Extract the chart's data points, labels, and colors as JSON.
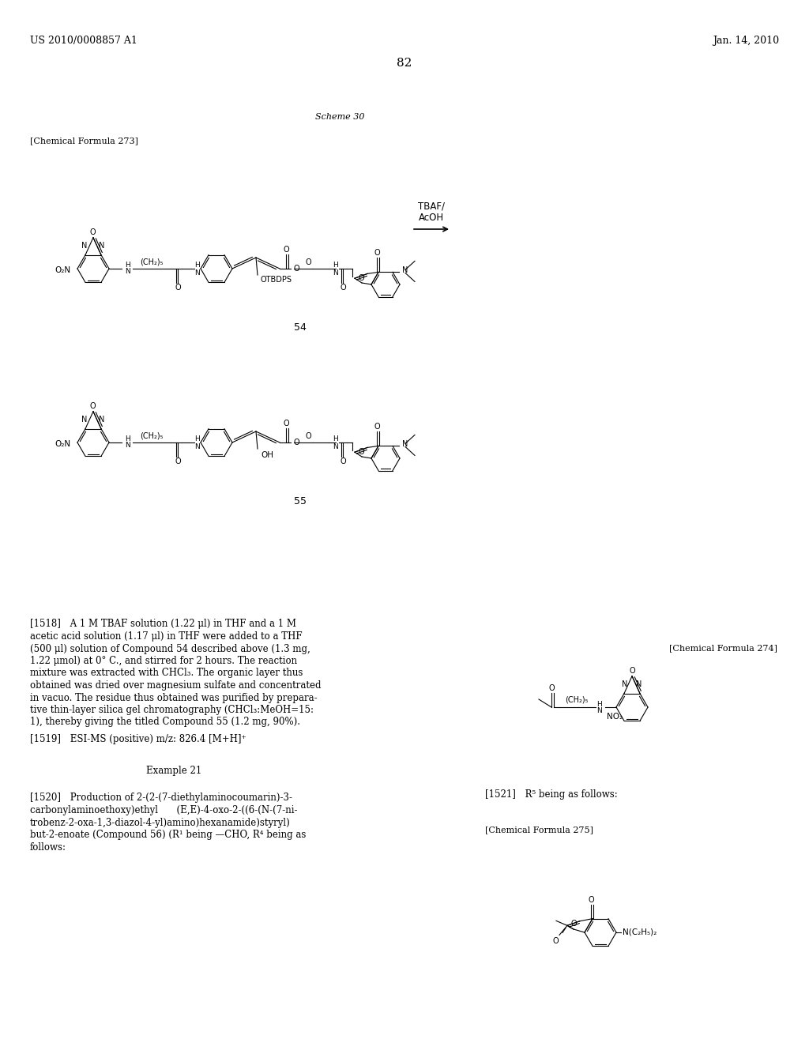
{
  "bg_color": "#ffffff",
  "header_left": "US 2010/0008857 A1",
  "header_right": "Jan. 14, 2010",
  "page_number": "82",
  "scheme_label": "Scheme 30",
  "chem_formula_273": "[Chemical Formula 273]",
  "chem_formula_274": "[Chemical Formula 274]",
  "chem_formula_275": "[Chemical Formula 275]",
  "compound_54": "54",
  "compound_55": "55",
  "tbaf_label": "TBAF/\nAcOH",
  "para_1518_lines": [
    "[1518] A 1 M TBAF solution (1.22 μl) in THF and a 1 M",
    "acetic acid solution (1.17 μl) in THF were added to a THF",
    "(500 μl) solution of Compound 54 described above (1.3 mg,",
    "1.22 μmol) at 0° C., and stirred for 2 hours. The reaction",
    "mixture was extracted with CHCl₃. The organic layer thus",
    "obtained was dried over magnesium sulfate and concentrated",
    "in vacuo. The residue thus obtained was purified by prepara-",
    "tive thin-layer silica gel chromatography (CHCl₃:MeOH=15:",
    "1), thereby giving the titled Compound 55 (1.2 mg, 90%)."
  ],
  "para_1519": "[1519] ESI-MS (positive) m/z: 826.4 [M+H]⁺",
  "example_21": "Example 21",
  "para_1520_lines": [
    "[1520] Production of 2-(2-(7-diethylaminocoumarin)-3-",
    "carbonylaminoethoxy)ethyl  (E,E)-4-oxo-2-((6-(N-(7-ni-",
    "trobenz-2-oxa-1,3-diazol-4-yl)amino)hexanamide)styryl)",
    "but-2-enoate (Compound 56) (R¹ being —CHO, R⁴ being as",
    "follows:"
  ],
  "para_1521": "[1521] R⁵ being as follows:"
}
